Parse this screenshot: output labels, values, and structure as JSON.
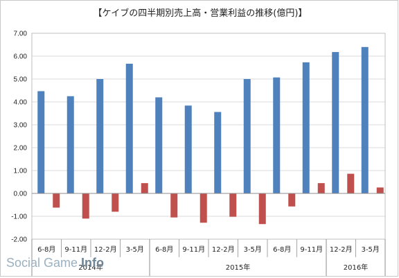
{
  "chart_data": {
    "type": "bar",
    "title": "【ケイブの四半期別売上高・営業利益の推移(億円)】",
    "categories": [
      "6-8月",
      "9-11月",
      "12-2月",
      "3-5月",
      "6-8月",
      "9-11月",
      "12-2月",
      "3-5月",
      "6-8月",
      "9-11月",
      "12-2月",
      "3-5月"
    ],
    "groups": [
      {
        "label": "2014年",
        "count": 4
      },
      {
        "label": "2015年",
        "count": 6
      },
      {
        "label": "2016年",
        "count": 2
      }
    ],
    "series": [
      {
        "values": [
          4.47,
          4.25,
          5.0,
          5.67,
          4.2,
          3.84,
          3.56,
          5.0,
          5.07,
          5.73,
          6.18,
          6.4
        ]
      },
      {
        "values": [
          -0.62,
          -1.1,
          -0.8,
          0.45,
          -1.05,
          -1.28,
          -1.02,
          -1.34,
          -0.57,
          0.45,
          0.86,
          0.26
        ]
      }
    ],
    "ylim": [
      -2.0,
      7.0
    ],
    "yticks": [
      "7.00",
      "6.00",
      "5.00",
      "4.00",
      "3.00",
      "2.00",
      "1.00",
      "0.00",
      "-1.00",
      "-2.00"
    ],
    "colors": {
      "sales": "#4f81bd",
      "operating_profit": "#c0504d"
    },
    "grid": true,
    "legend": "none"
  },
  "watermark": {
    "part1": "Social Game ",
    "part2": "Info"
  }
}
